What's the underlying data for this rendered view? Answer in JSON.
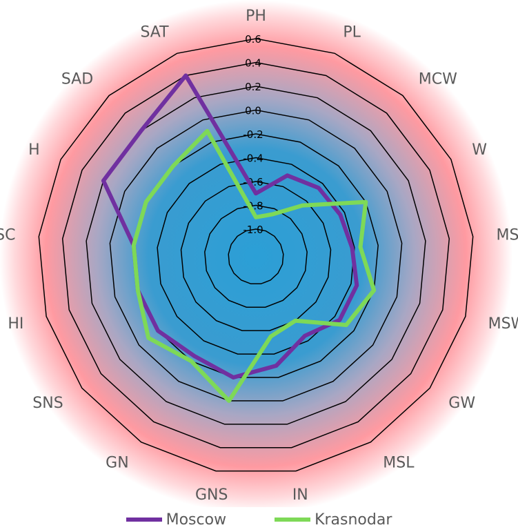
{
  "chart_data": {
    "type": "radar",
    "axes": [
      "PH",
      "PL",
      "MCW",
      "W",
      "MSB",
      "MSW",
      "GW",
      "MSL",
      "IN",
      "GNS",
      "GN",
      "SNS",
      "HI",
      "SC",
      "H",
      "SAD",
      "SAT"
    ],
    "rlim": [
      -1.0,
      0.6
    ],
    "ticks": [
      "-1.0",
      "-0.8",
      "-0.6",
      "-0.4",
      "-0.2",
      "0.0",
      "0.2",
      "0.4",
      "0.6"
    ],
    "tick_values": [
      -1.0,
      -0.8,
      -0.6,
      -0.4,
      -0.2,
      0.0,
      0.2,
      0.4,
      0.6
    ],
    "grid": true,
    "legend_position": "bottom",
    "series": [
      {
        "name": "Moscow",
        "color": "#7030a0",
        "values": [
          -0.7,
          -0.5,
          -0.45,
          -0.44,
          -0.42,
          -0.35,
          -0.35,
          -0.45,
          -0.3,
          -0.2,
          -0.25,
          -0.2,
          -0.2,
          -0.2,
          0.2,
          0.2,
          0.4
        ]
      },
      {
        "name": "Krasnodar",
        "color": "#7ed957",
        "values": [
          -0.9,
          -0.85,
          -0.65,
          -0.2,
          -0.35,
          -0.2,
          -0.28,
          -0.6,
          -0.55,
          0.0,
          -0.2,
          -0.1,
          -0.2,
          -0.2,
          -0.2,
          -0.2,
          -0.1
        ]
      }
    ]
  },
  "colors": {
    "center": "#2fa0d4",
    "outer": "#ff9aa2",
    "grid": "#000000"
  }
}
